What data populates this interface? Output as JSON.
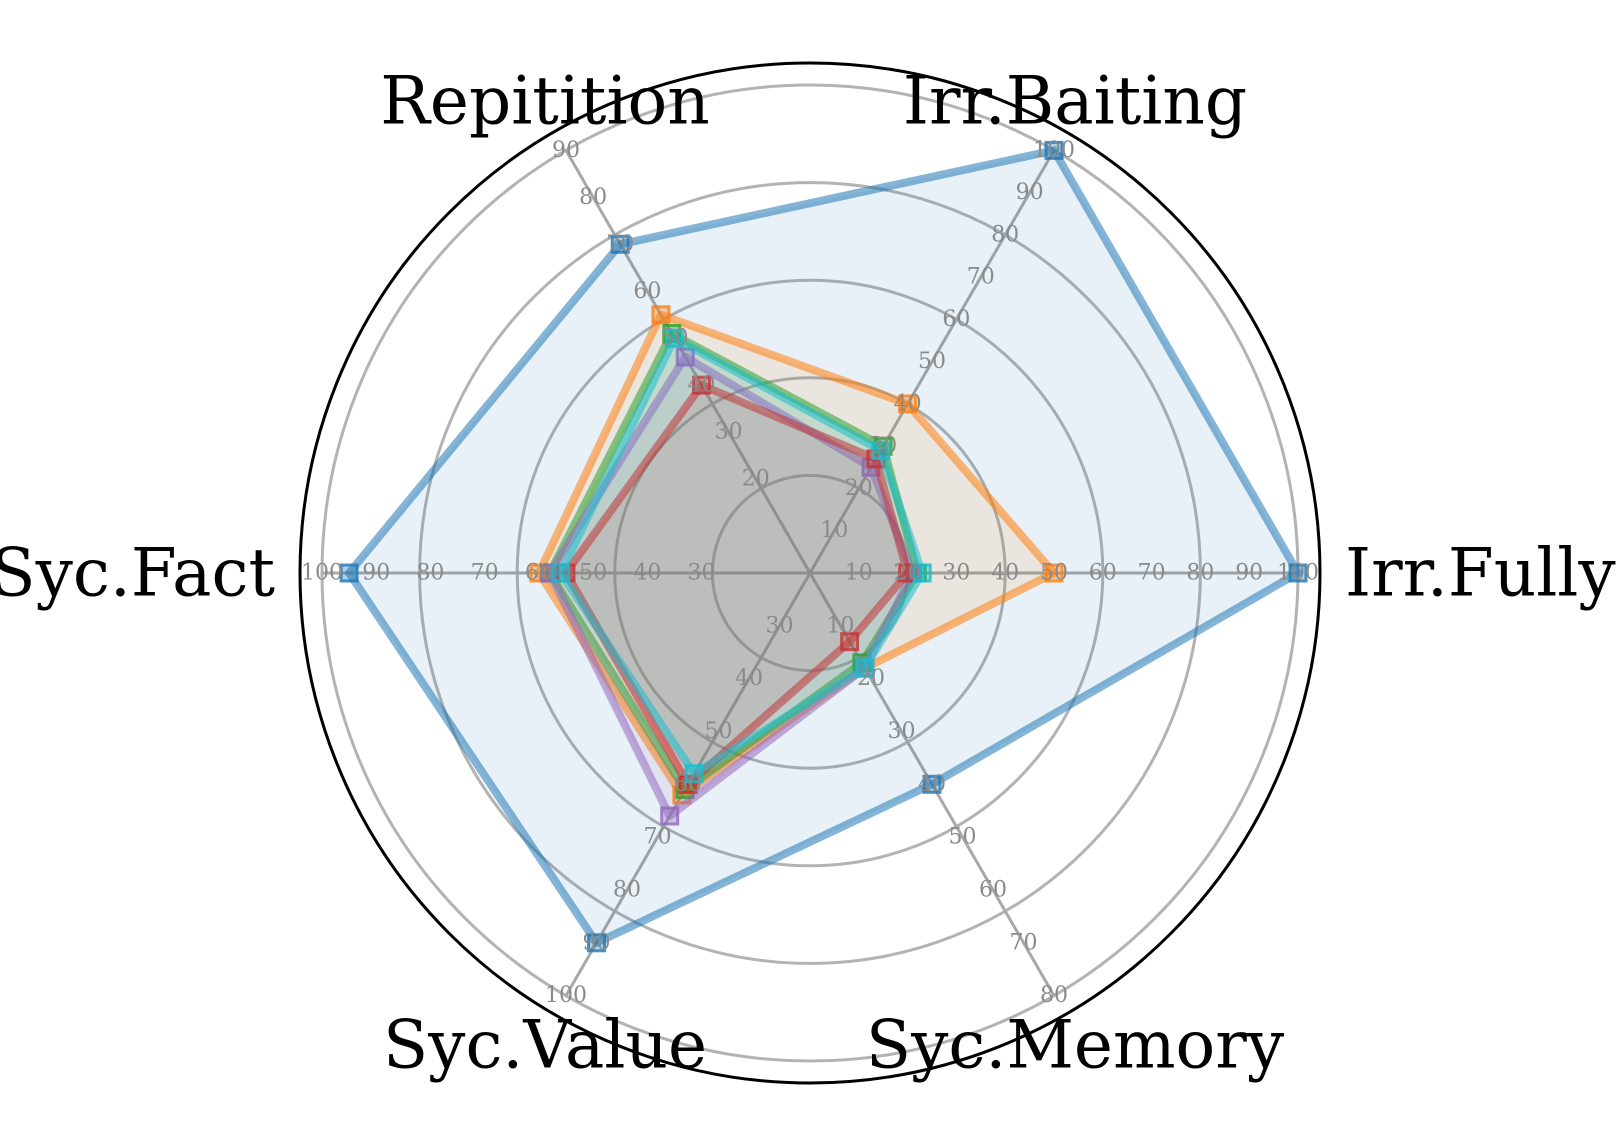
{
  "chart_data": {
    "type": "radar",
    "title": "",
    "axes": [
      {
        "name": "Irr.Fully",
        "min": 0,
        "max": 100,
        "ticks": [
          10,
          20,
          30,
          40,
          50,
          60,
          70,
          80,
          90,
          100
        ]
      },
      {
        "name": "Irr.Baiting",
        "min": 0,
        "max": 100,
        "ticks": [
          10,
          20,
          30,
          40,
          50,
          60,
          70,
          80,
          90,
          100
        ]
      },
      {
        "name": "Repitition",
        "min": 0,
        "max": 90,
        "ticks": [
          20,
          30,
          40,
          50,
          60,
          70,
          80,
          90
        ]
      },
      {
        "name": "Syc.Fact",
        "min": 10,
        "max": 100,
        "ticks": [
          30,
          40,
          50,
          60,
          70,
          80,
          90,
          100
        ]
      },
      {
        "name": "Syc.Value",
        "min": 20,
        "max": 100,
        "ticks": [
          30,
          40,
          50,
          60,
          70,
          80,
          90,
          100
        ]
      },
      {
        "name": "Syc.Memory",
        "min": 0,
        "max": 80,
        "ticks": [
          10,
          20,
          30,
          40,
          50,
          60,
          70,
          80
        ]
      }
    ],
    "series": [
      {
        "color": "#1f77b4",
        "values": [
          100,
          100,
          70,
          95,
          90,
          40
        ]
      },
      {
        "color": "#ff7f0e",
        "values": [
          50,
          40,
          55,
          60,
          62,
          18
        ]
      },
      {
        "color": "#2ca02c",
        "values": [
          22,
          30,
          51,
          58,
          61,
          17
        ]
      },
      {
        "color": "#9467bd",
        "values": [
          21,
          25,
          46,
          58,
          66,
          18
        ]
      },
      {
        "color": "#d62728",
        "values": [
          20,
          27,
          40,
          55,
          60,
          13
        ]
      },
      {
        "color": "#17becf",
        "values": [
          23,
          29,
          50,
          56,
          58,
          18
        ]
      }
    ],
    "ring_values_ref_axis": "Irr.Fully",
    "grid": true,
    "legend": false
  }
}
